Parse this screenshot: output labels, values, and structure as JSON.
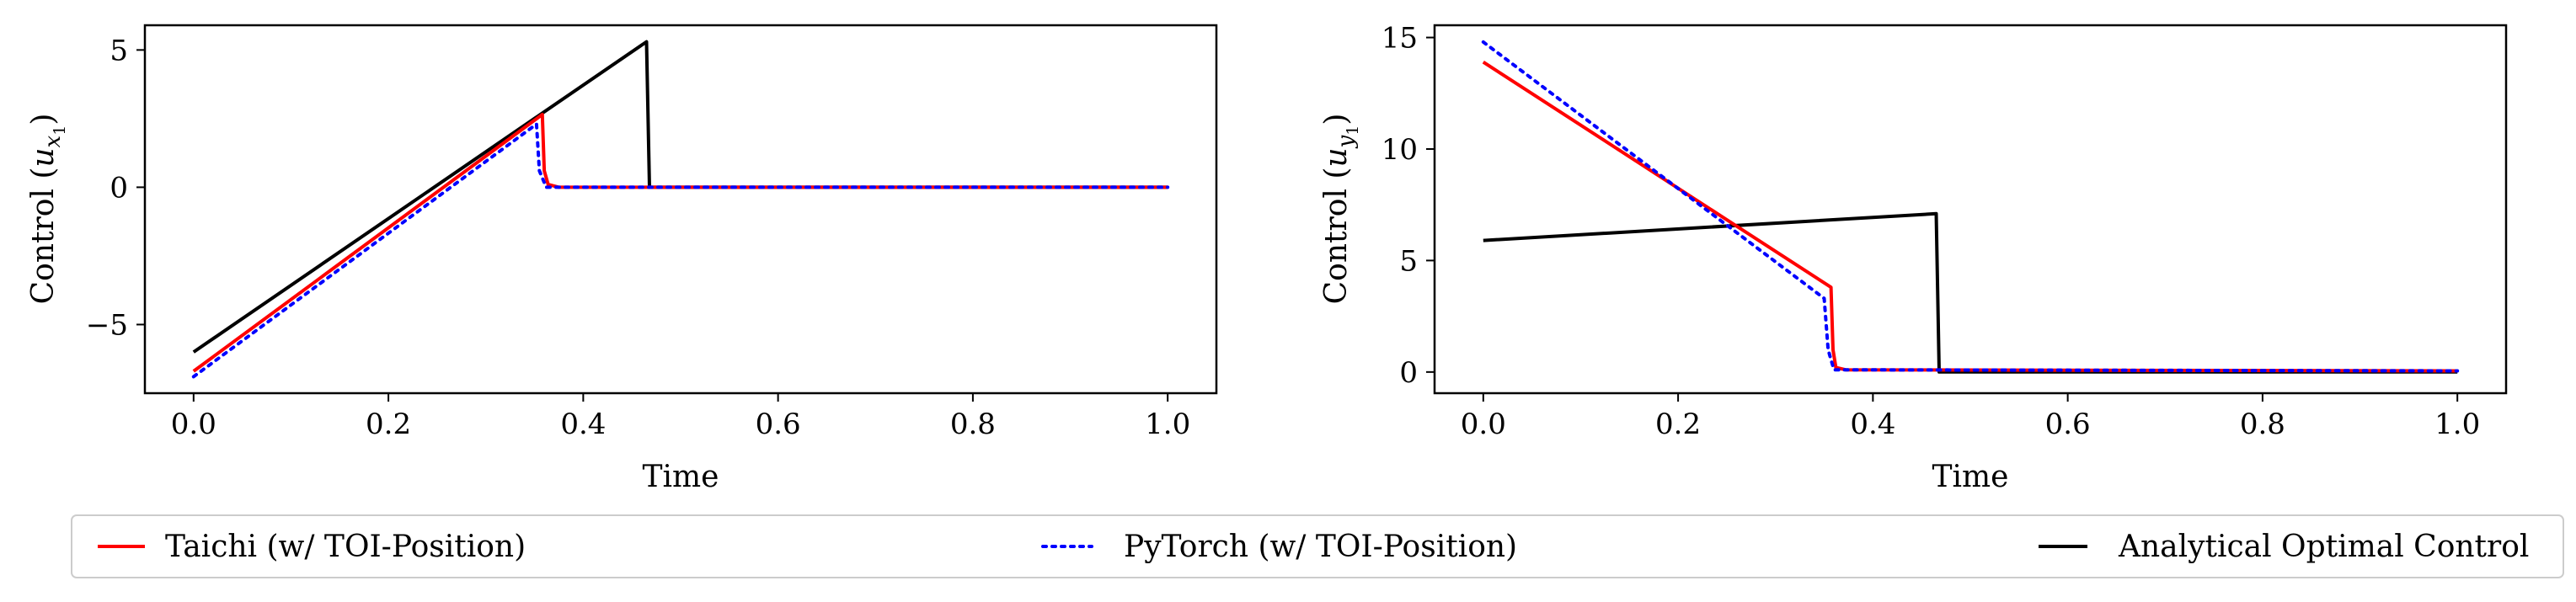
{
  "chart_data": [
    {
      "type": "line",
      "title": "",
      "xlabel": "Time",
      "ylabel": "Control (u_{x_1})",
      "ylabel_main": "Control (",
      "ylabel_sym": "u",
      "ylabel_sub": "x",
      "ylabel_subsub": "1",
      "ylabel_end": ")",
      "xlim": [
        -0.05,
        1.05
      ],
      "ylim": [
        -7.5,
        5.9
      ],
      "x_ticks": [
        0.0,
        0.2,
        0.4,
        0.6,
        0.8,
        1.0
      ],
      "x_tick_labels": [
        "0.0",
        "0.2",
        "0.4",
        "0.6",
        "0.8",
        "1.0"
      ],
      "y_ticks": [
        -5,
        0,
        5
      ],
      "y_tick_labels": [
        "−5",
        "0",
        "5"
      ],
      "grid": false,
      "series": [
        {
          "name": "Taichi (w/ TOI-Position)",
          "color": "#ff0000",
          "style": "solid",
          "x": [
            0.0,
            0.358,
            0.36,
            0.364,
            0.375,
            1.0
          ],
          "y": [
            -6.7,
            2.65,
            0.6,
            0.1,
            0.0,
            0.0
          ]
        },
        {
          "name": "PyTorch (w/ TOI-Position)",
          "color": "#0000ff",
          "style": "dotted",
          "x": [
            0.0,
            0.352,
            0.355,
            0.362,
            1.0
          ],
          "y": [
            -6.9,
            2.3,
            0.6,
            0.0,
            0.0
          ]
        },
        {
          "name": "Analytical Optimal Control",
          "color": "#000000",
          "style": "solid",
          "x": [
            0.0,
            0.465,
            0.468,
            1.0
          ],
          "y": [
            -6.0,
            5.3,
            0.0,
            0.0
          ]
        }
      ]
    },
    {
      "type": "line",
      "title": "",
      "xlabel": "Time",
      "ylabel": "Control (u_{y_1})",
      "ylabel_main": "Control (",
      "ylabel_sym": "u",
      "ylabel_sub": "y",
      "ylabel_subsub": "1",
      "ylabel_end": ")",
      "xlim": [
        -0.05,
        1.05
      ],
      "ylim": [
        -0.95,
        15.55
      ],
      "x_ticks": [
        0.0,
        0.2,
        0.4,
        0.6,
        0.8,
        1.0
      ],
      "x_tick_labels": [
        "0.0",
        "0.2",
        "0.4",
        "0.6",
        "0.8",
        "1.0"
      ],
      "y_ticks": [
        0,
        5,
        10,
        15
      ],
      "y_tick_labels": [
        "0",
        "5",
        "10",
        "15"
      ],
      "grid": false,
      "series": [
        {
          "name": "Taichi (w/ TOI-Position)",
          "color": "#ff0000",
          "style": "solid",
          "x": [
            0.0,
            0.357,
            0.359,
            0.362,
            0.372,
            1.0
          ],
          "y": [
            13.9,
            3.8,
            1.0,
            0.2,
            0.1,
            0.05
          ]
        },
        {
          "name": "PyTorch (w/ TOI-Position)",
          "color": "#0000ff",
          "style": "dotted",
          "x": [
            0.0,
            0.35,
            0.354,
            0.36,
            1.0
          ],
          "y": [
            14.8,
            3.3,
            1.0,
            0.1,
            0.05
          ]
        },
        {
          "name": "Analytical Optimal Control",
          "color": "#000000",
          "style": "solid",
          "x": [
            0.0,
            0.465,
            0.468,
            1.0
          ],
          "y": [
            5.9,
            7.1,
            0.0,
            0.0
          ]
        }
      ]
    }
  ],
  "legend": {
    "placement": "bottom",
    "items": [
      {
        "label": "Taichi (w/ TOI-Position)",
        "color": "#ff0000",
        "style": "solid"
      },
      {
        "label": "PyTorch (w/ TOI-Position)",
        "color": "#0000ff",
        "style": "dotted"
      },
      {
        "label": "Analytical Optimal Control",
        "color": "#000000",
        "style": "solid"
      }
    ]
  }
}
